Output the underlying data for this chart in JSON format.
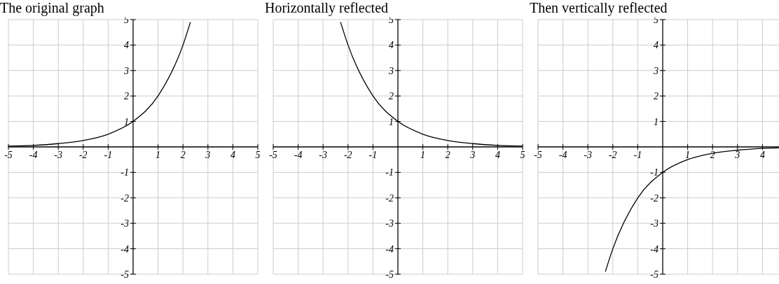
{
  "chart_data": [
    {
      "type": "line",
      "title": "The original graph",
      "x": [
        -5,
        -4,
        -3,
        -2,
        -1,
        0,
        1,
        2,
        2.3
      ],
      "series": [
        {
          "color": "#000000",
          "values": [
            0.03,
            0.06,
            0.13,
            0.25,
            0.5,
            1,
            2,
            4,
            4.9
          ]
        }
      ],
      "xlim": [
        -5,
        5
      ],
      "ylim": [
        -5,
        5
      ],
      "xticks": [
        -5,
        -4,
        -3,
        -2,
        -1,
        1,
        2,
        3,
        4,
        5
      ],
      "yticks": [
        -5,
        -4,
        -3,
        -2,
        -1,
        1,
        2,
        3,
        4,
        5
      ],
      "grid": true,
      "legend": false,
      "marker": "none"
    },
    {
      "type": "line",
      "title": "Horizontally reflected",
      "x": [
        -2.3,
        -2,
        -1,
        0,
        1,
        2,
        3,
        4,
        5
      ],
      "series": [
        {
          "color": "#000000",
          "values": [
            4.9,
            4,
            2,
            1,
            0.5,
            0.25,
            0.13,
            0.06,
            0.03
          ]
        }
      ],
      "xlim": [
        -5,
        5
      ],
      "ylim": [
        -5,
        5
      ],
      "xticks": [
        -5,
        -4,
        -3,
        -2,
        -1,
        1,
        2,
        3,
        4,
        5
      ],
      "yticks": [
        -5,
        -4,
        -3,
        -2,
        -1,
        1,
        2,
        3,
        4,
        5
      ],
      "grid": true,
      "legend": false,
      "marker": "none"
    },
    {
      "type": "line",
      "title": "Then vertically reflected",
      "x": [
        -2.3,
        -2,
        -1,
        0,
        1,
        2,
        3,
        4,
        5
      ],
      "series": [
        {
          "color": "#000000",
          "values": [
            -4.9,
            -4,
            -2,
            -1,
            -0.5,
            -0.25,
            -0.13,
            -0.06,
            -0.03
          ]
        }
      ],
      "xlim": [
        -5,
        5
      ],
      "ylim": [
        -5,
        5
      ],
      "xticks": [
        -5,
        -4,
        -3,
        -2,
        -1,
        1,
        2,
        3,
        4
      ],
      "yticks": [
        -5,
        -4,
        -3,
        -2,
        -1,
        1,
        2,
        3,
        4,
        5
      ],
      "grid": true,
      "legend": false,
      "marker": "none"
    }
  ]
}
